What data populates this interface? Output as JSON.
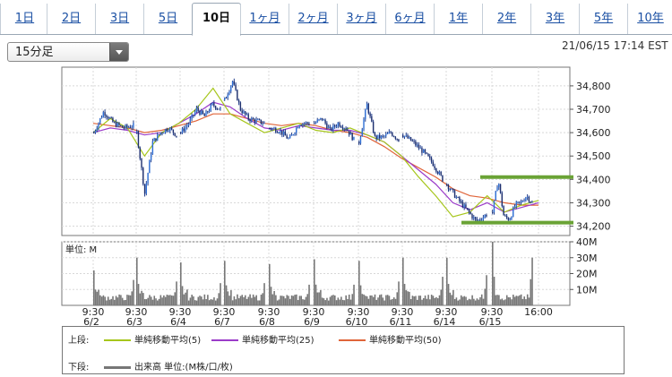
{
  "tabs": [
    "1日",
    "2日",
    "3日",
    "5日",
    "10日",
    "1ヶ月",
    "2ヶ月",
    "3ヶ月",
    "6ヶ月",
    "1年",
    "2年",
    "3年",
    "5年",
    "10年"
  ],
  "active_tab": "10日",
  "interval_select": {
    "value": "15分足"
  },
  "timestamp": "21/06/15 17:14 EST",
  "colors": {
    "candle_up": "#1e3b8a",
    "candle_down": "#1e3b8a",
    "ma5": "#a6c61c",
    "ma25": "#9b3cc9",
    "ma50": "#e0653a",
    "support_resistance": "#6aa335",
    "volume": "#777777"
  },
  "legend": {
    "upper_label": "上段:",
    "lower_label": "下段:",
    "ma5": "単純移動平均(5)",
    "ma25": "単純移動平均(25)",
    "ma50": "単純移動平均(50)",
    "volume": "出来高 単位:(M株/口/枚)"
  },
  "chart_data": {
    "type": "candlestick",
    "price": {
      "ylim": [
        34160,
        34880
      ],
      "y_ticks": [
        "34,800",
        "34,700",
        "34,600",
        "34,500",
        "34,400",
        "34,300",
        "34,200"
      ],
      "y_tick_values": [
        34800,
        34700,
        34600,
        34500,
        34400,
        34300,
        34200
      ],
      "sessions": [
        {
          "date": "6/2",
          "path": [
            34600,
            34690,
            34640,
            34620,
            34630
          ]
        },
        {
          "date": "6/3",
          "path": [
            34600,
            34340,
            34560,
            34600,
            34620,
            34590
          ]
        },
        {
          "date": "6/4",
          "path": [
            34600,
            34640,
            34700,
            34670,
            34720,
            34700
          ]
        },
        {
          "date": "6/7",
          "path": [
            34740,
            34820,
            34700,
            34660,
            34650,
            34640
          ]
        },
        {
          "date": "6/8",
          "path": [
            34620,
            34610,
            34570,
            34640,
            34640
          ]
        },
        {
          "date": "6/9",
          "path": [
            34640,
            34660,
            34610,
            34640,
            34620,
            34570
          ]
        },
        {
          "date": "6/10",
          "path": [
            34560,
            34720,
            34580,
            34580,
            34600,
            34570
          ]
        },
        {
          "date": "6/11",
          "path": [
            34590,
            34560,
            34520,
            34470,
            34400
          ]
        },
        {
          "date": "6/14",
          "path": [
            34380,
            34320,
            34270,
            34220,
            34250
          ]
        },
        {
          "date": "6/15",
          "path": [
            34260,
            34400,
            34240,
            34230,
            34290,
            34300,
            34330,
            34300
          ]
        }
      ],
      "ma5": [
        34600,
        34660,
        34620,
        34500,
        34600,
        34640,
        34700,
        34790,
        34680,
        34640,
        34600,
        34620,
        34640,
        34610,
        34600,
        34620,
        34590,
        34560,
        34500,
        34410,
        34330,
        34240,
        34260,
        34330,
        34260,
        34290,
        34310
      ],
      "ma25": [
        34600,
        34620,
        34610,
        34590,
        34600,
        34640,
        34680,
        34730,
        34710,
        34660,
        34620,
        34610,
        34630,
        34620,
        34610,
        34610,
        34590,
        34560,
        34500,
        34440,
        34380,
        34300,
        34270,
        34300,
        34260,
        34280,
        34300
      ],
      "ma50": [
        34640,
        34630,
        34620,
        34600,
        34610,
        34630,
        34650,
        34680,
        34680,
        34660,
        34640,
        34630,
        34640,
        34630,
        34610,
        34600,
        34580,
        34540,
        34490,
        34450,
        34410,
        34360,
        34330,
        34320,
        34300,
        34290,
        34290
      ],
      "resistance": 34410,
      "support": 34215
    },
    "volume": {
      "ylabel": "単位: M",
      "ylim": [
        0,
        40
      ],
      "y_ticks": [
        "40M",
        "30M",
        "20M",
        "10M"
      ],
      "y_tick_values": [
        40,
        30,
        20,
        10
      ],
      "session_open_spikes": [
        22,
        30,
        27,
        28,
        26,
        29,
        28,
        30,
        30,
        40
      ],
      "session_close_spikes": [
        16,
        15,
        14,
        14,
        13,
        13,
        15,
        18,
        19,
        30
      ]
    },
    "x_tick_times": [
      "9:30",
      "9:30",
      "9:30",
      "9:30",
      "9:30",
      "9:30",
      "9:30",
      "9:30",
      "9:30",
      "9:30",
      "16:00"
    ],
    "x_tick_dates": [
      "6/2",
      "6/3",
      "6/4",
      "6/7",
      "6/8",
      "6/9",
      "6/10",
      "6/11",
      "6/14",
      "6/15",
      ""
    ]
  }
}
